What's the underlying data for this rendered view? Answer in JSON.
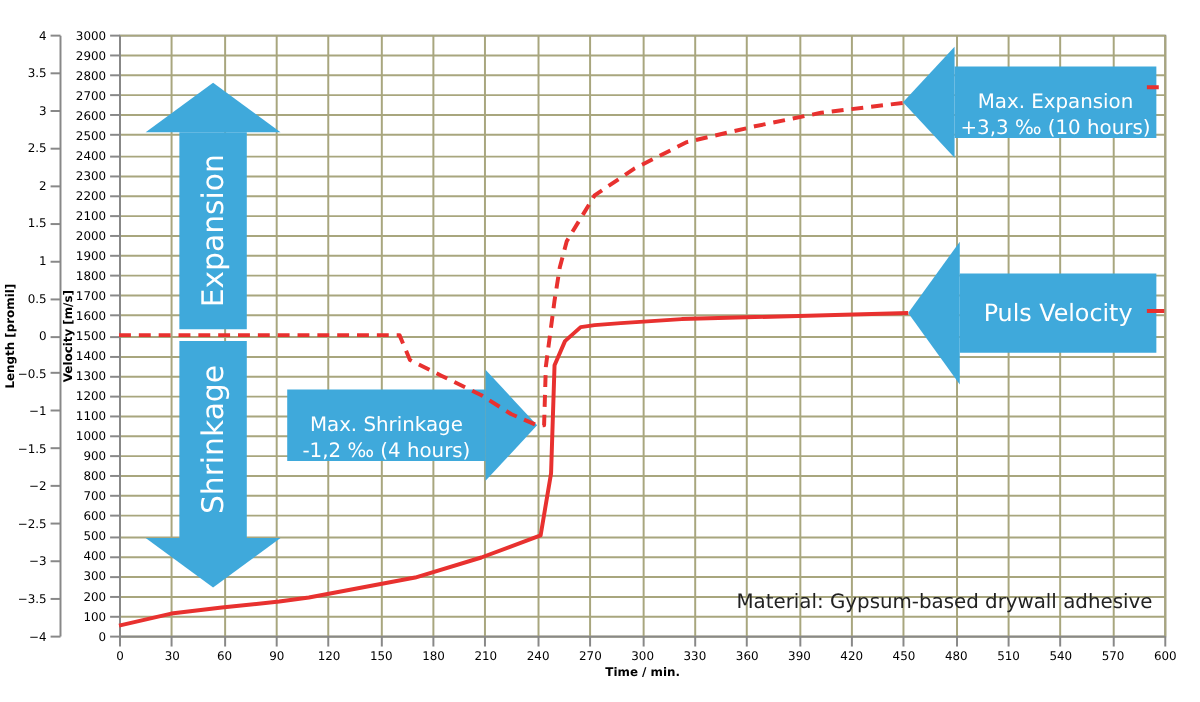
{
  "chart_data": {
    "type": "line",
    "xlabel": "Time / min.",
    "ylabel": "Length [promil]",
    "y2label": "Velocity [m/s]",
    "xlim": [
      0,
      600
    ],
    "xticks": [
      0,
      30,
      60,
      90,
      120,
      150,
      180,
      210,
      240,
      270,
      300,
      330,
      360,
      390,
      420,
      450,
      480,
      510,
      540,
      570,
      600
    ],
    "ylim": [
      -4,
      4
    ],
    "yticks": [
      -4,
      -3.5,
      -3,
      -2.5,
      -2,
      -1.5,
      -1,
      -0.5,
      0,
      0.5,
      1,
      1.5,
      2,
      2.5,
      3,
      3.5,
      4
    ],
    "y2lim": [
      0,
      3000
    ],
    "y2ticks": [
      0,
      100,
      200,
      300,
      400,
      500,
      600,
      700,
      800,
      900,
      1000,
      1100,
      1200,
      1300,
      1400,
      1500,
      1600,
      1700,
      1800,
      1900,
      2000,
      2100,
      2200,
      2300,
      2400,
      2500,
      2600,
      2700,
      2800,
      2900,
      3000
    ],
    "grid": true,
    "marker": "none",
    "series": [
      {
        "color": "#e8312f",
        "line_style": "dashed",
        "x": [
          0,
          150,
          161,
          167,
          185,
          208,
          225,
          240,
          244,
          245,
          250,
          253,
          257,
          273,
          296,
          326,
          365,
          403,
          453,
          500,
          590,
          600
        ],
        "values": [
          0,
          0,
          0,
          -0.33,
          -0.54,
          -0.8,
          -1.05,
          -1.2,
          -1.2,
          -0.42,
          0.46,
          0.9,
          1.25,
          1.86,
          2.22,
          2.57,
          2.78,
          2.96,
          3.1,
          null,
          3.3,
          3.3
        ]
      },
      {
        "name": "Puls Velocity",
        "color": "#e8312f",
        "line_style": "solid",
        "axis": "y2",
        "x": [
          0,
          30,
          59,
          92,
          109,
          170,
          208,
          242,
          248,
          250,
          256,
          265,
          273,
          288,
          323,
          365,
          453,
          500,
          590,
          600
        ],
        "values": [
          50,
          110,
          140,
          170,
          190,
          290,
          390,
          500,
          810,
          1350,
          1470,
          1540,
          1550,
          1560,
          1580,
          1590,
          1610,
          null,
          1620,
          1620
        ]
      }
    ],
    "annotations": [
      "Expansion",
      "Shrinkage",
      {
        "text": "Max. Shrinkage\n-1,2 ‰ (4 hours)",
        "x": 240,
        "y": -1.2
      },
      {
        "text": "Max. Expansion\n+3,3 ‰ (10 hours)",
        "x": 450,
        "y": 3.1
      },
      "Material: Gypsum-based drywall adhesive"
    ]
  }
}
